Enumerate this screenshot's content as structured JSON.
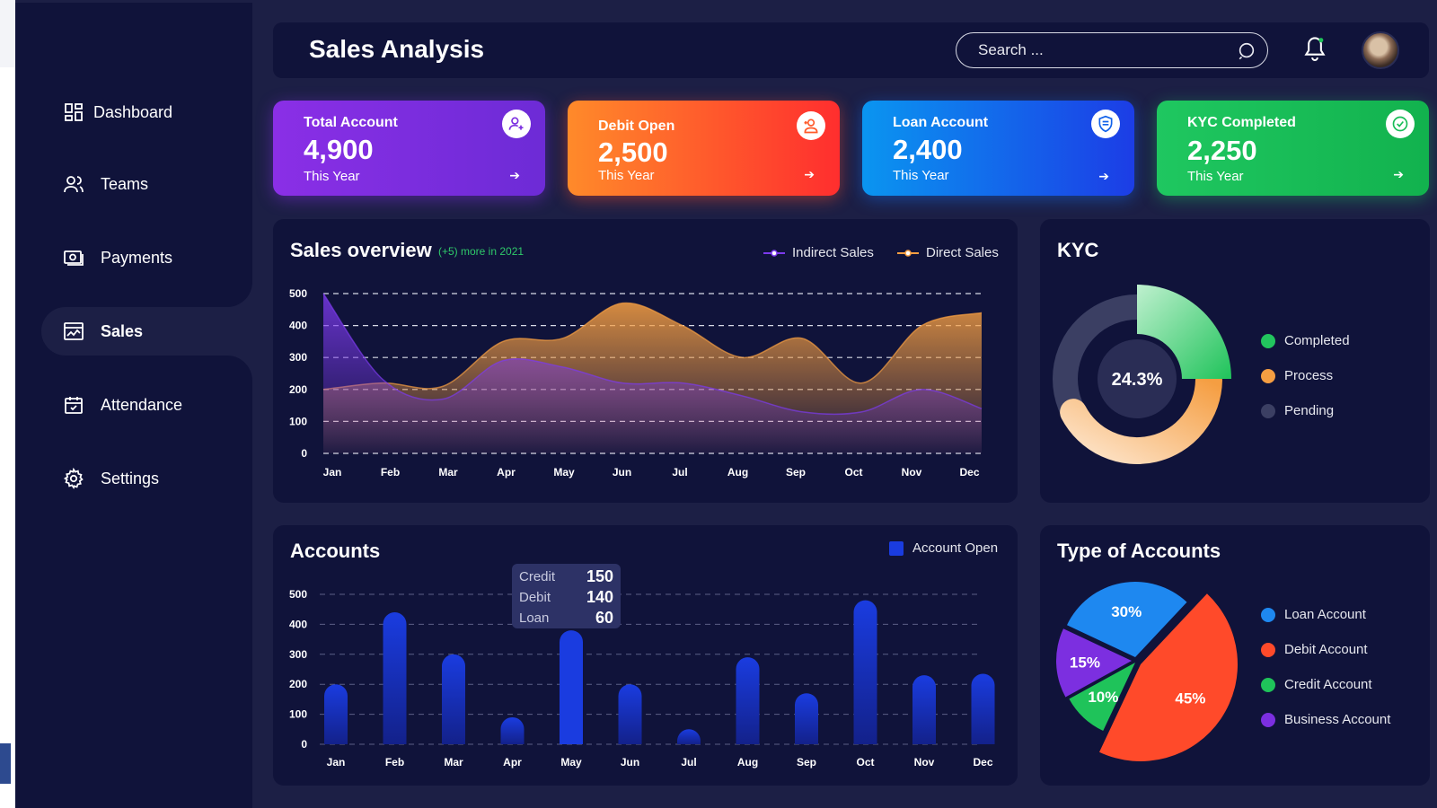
{
  "sidebar": {
    "items": [
      {
        "label": "Dashboard",
        "icon": "dashboard-icon"
      },
      {
        "label": "Teams",
        "icon": "teams-icon"
      },
      {
        "label": "Payments",
        "icon": "payments-icon"
      },
      {
        "label": "Sales",
        "icon": "sales-icon",
        "active": true
      },
      {
        "label": "Attendance",
        "icon": "calendar-icon"
      },
      {
        "label": "Settings",
        "icon": "gear-icon"
      }
    ]
  },
  "header": {
    "title": "Sales Analysis",
    "search_placeholder": "Search ..."
  },
  "cards": [
    {
      "label": "Total Account",
      "value": "4,900",
      "sub": "This Year",
      "icon": "user-icon",
      "color": "#7b2ee0"
    },
    {
      "label": "Debit Open",
      "value": "2,500",
      "sub": "This Year",
      "icon": "user-add-icon",
      "color": "#ff5a2a"
    },
    {
      "label": "Loan Account",
      "value": "2,400",
      "sub": "This Year",
      "icon": "shield-icon",
      "color": "#1262ea"
    },
    {
      "label": "KYC Completed",
      "value": "2,250",
      "sub": "This Year",
      "icon": "check-circle-icon",
      "color": "#18bd57"
    }
  ],
  "sales_overview": {
    "title": "Sales overview",
    "note": "(+5) more in 2021",
    "legend": [
      "Indirect Sales",
      "Direct Sales"
    ]
  },
  "kyc": {
    "title": "KYC",
    "center": "24.3%",
    "legend": [
      {
        "label": "Completed",
        "color": "#22c55e"
      },
      {
        "label": "Process",
        "color": "#f59e42"
      },
      {
        "label": "Pending",
        "color": "#3b3f63"
      }
    ]
  },
  "accounts": {
    "title": "Accounts",
    "legend": "Account Open",
    "tooltip": [
      {
        "label": "Credit",
        "value": "150"
      },
      {
        "label": "Debit",
        "value": "140"
      },
      {
        "label": "Loan",
        "value": "60"
      }
    ]
  },
  "type_of_accounts": {
    "title": "Type of Accounts",
    "legend": [
      {
        "label": "Loan Account",
        "color": "#1e88f0"
      },
      {
        "label": "Debit Account",
        "color": "#ff4a2a"
      },
      {
        "label": "Credit Account",
        "color": "#1fc35a"
      },
      {
        "label": "Business Account",
        "color": "#7c2fe0"
      }
    ]
  },
  "chart_data": [
    {
      "type": "area",
      "title": "Sales overview",
      "categories": [
        "Jan",
        "Feb",
        "Mar",
        "Apr",
        "May",
        "Jun",
        "Jul",
        "Aug",
        "Sep",
        "Oct",
        "Nov",
        "Dec"
      ],
      "ylim": [
        0,
        500
      ],
      "yticks": [
        0,
        100,
        200,
        300,
        400,
        500
      ],
      "series": [
        {
          "name": "Indirect Sales",
          "color": "#7c3aed",
          "values": [
            500,
            230,
            170,
            290,
            270,
            220,
            220,
            180,
            130,
            130,
            200,
            140
          ]
        },
        {
          "name": "Direct Sales",
          "color": "#f59e42",
          "values": [
            200,
            220,
            210,
            350,
            360,
            470,
            400,
            300,
            360,
            220,
            400,
            440
          ]
        }
      ]
    },
    {
      "type": "bar",
      "title": "Accounts",
      "categories": [
        "Jan",
        "Feb",
        "Mar",
        "Apr",
        "May",
        "Jun",
        "Jul",
        "Aug",
        "Sep",
        "Oct",
        "Nov",
        "Dec"
      ],
      "ylim": [
        0,
        500
      ],
      "yticks": [
        0,
        100,
        200,
        300,
        400,
        500
      ],
      "series": [
        {
          "name": "Account Open",
          "color": "#1a3ce0",
          "values": [
            200,
            440,
            300,
            90,
            380,
            200,
            50,
            290,
            170,
            480,
            230,
            235
          ]
        }
      ]
    },
    {
      "type": "pie",
      "title": "KYC",
      "series": [
        {
          "name": "Completed",
          "value": 24.3,
          "color": "#22c55e"
        },
        {
          "name": "Process",
          "value": 42,
          "color": "#f59e42"
        },
        {
          "name": "Pending",
          "value": 33.7,
          "color": "#3b3f63"
        }
      ]
    },
    {
      "type": "pie",
      "title": "Type of Accounts",
      "series": [
        {
          "name": "Loan Account",
          "value": 30,
          "label": "30%",
          "color": "#1e88f0"
        },
        {
          "name": "Debit Account",
          "value": 45,
          "label": "45%",
          "color": "#ff4a2a"
        },
        {
          "name": "Credit Account",
          "value": 10,
          "label": "10%",
          "color": "#1fc35a"
        },
        {
          "name": "Business Account",
          "value": 15,
          "label": "15%",
          "color": "#7c2fe0"
        }
      ]
    }
  ]
}
